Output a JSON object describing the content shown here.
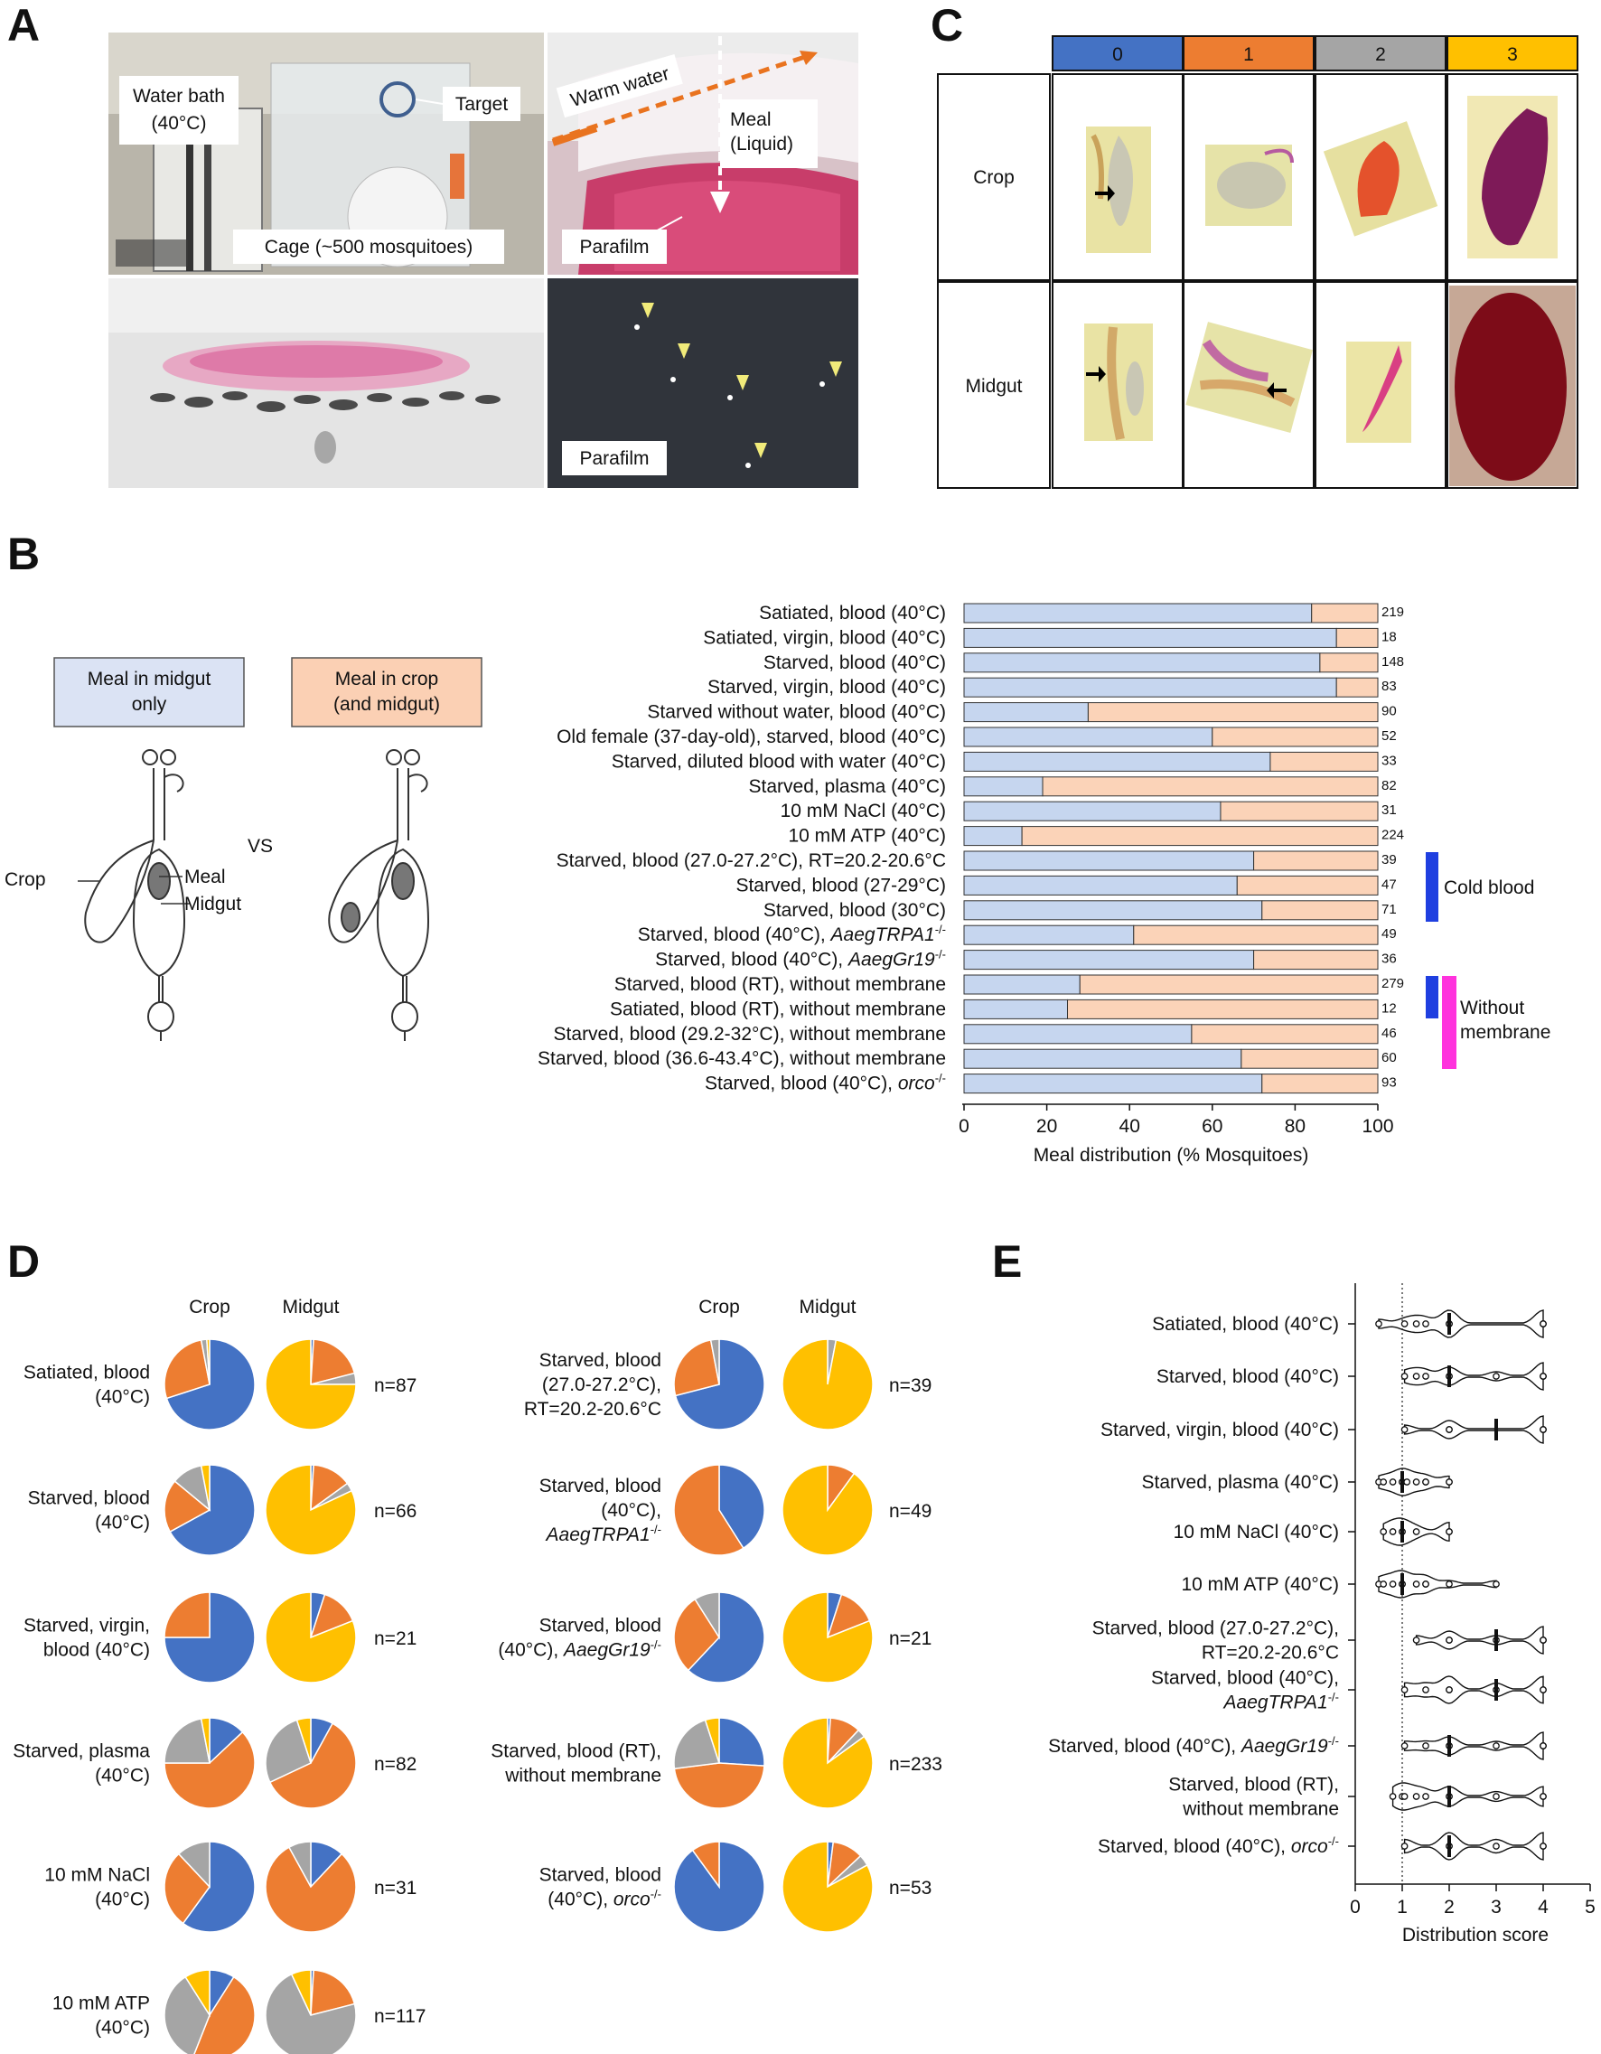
{
  "colors": {
    "midgut_only": "#c6d6ef",
    "crop": "#fbd3b8",
    "score0": "#4472c4",
    "score1": "#ed7d31",
    "score2": "#a5a5a5",
    "score3": "#ffc000",
    "cold": "#1f3fe0",
    "nomem": "#ff33dd"
  },
  "panel_a": {
    "letter": "A",
    "water_bath": [
      "Water bath",
      "(40°C)"
    ],
    "target": "Target",
    "cage": "Cage (~500 mosquitoes)",
    "warm_water": "Warm water",
    "meal": [
      "Meal",
      "(Liquid)"
    ],
    "parafilm1": "Parafilm",
    "parafilm2": "Parafilm"
  },
  "panel_c": {
    "letter": "C",
    "scores": [
      "0",
      "1",
      "2",
      "3"
    ],
    "rows": [
      "Crop",
      "Midgut"
    ]
  },
  "panel_b": {
    "letter": "B",
    "legend_midgut": [
      "Meal in midgut",
      "only"
    ],
    "legend_crop": [
      "Meal in crop",
      "(and midgut)"
    ],
    "diagram": {
      "crop": "Crop",
      "meal": "Meal",
      "midgut": "Midgut",
      "vs": "VS"
    },
    "bracket_cold": "Cold blood",
    "bracket_nomem": [
      "Without",
      "membrane"
    ]
  },
  "chart_data": [
    {
      "type": "bar",
      "stacked": true,
      "orientation": "horizontal",
      "xlabel": "Meal distribution (% Mosquitoes)",
      "xlim": [
        0,
        100
      ],
      "xticks": [
        0,
        20,
        40,
        60,
        80,
        100
      ],
      "series_names": [
        "Meal in midgut only",
        "Meal in crop (and midgut)"
      ],
      "rows": [
        {
          "label": "Satiated, blood (40°C)",
          "midgut": 84,
          "n": "219"
        },
        {
          "label": "Satiated, virgin, blood (40°C)",
          "midgut": 90,
          "n": "18"
        },
        {
          "label": "Starved, blood (40°C)",
          "midgut": 86,
          "n": "148"
        },
        {
          "label": "Starved, virgin, blood (40°C)",
          "midgut": 90,
          "n": "83"
        },
        {
          "label": "Starved without water, blood (40°C)",
          "midgut": 30,
          "n": "90"
        },
        {
          "label": "Old female (37-day-old), starved, blood (40°C)",
          "midgut": 60,
          "n": "52"
        },
        {
          "label": "Starved, diluted blood with water (40°C)",
          "midgut": 74,
          "n": "33"
        },
        {
          "label": "Starved, plasma (40°C)",
          "midgut": 19,
          "n": "82"
        },
        {
          "label": "10 mM NaCl (40°C)",
          "midgut": 62,
          "n": "31"
        },
        {
          "label": "10 mM ATP (40°C)",
          "midgut": 14,
          "n": "224"
        },
        {
          "label": "Starved, blood (27.0-27.2°C), RT=20.2-20.6°C",
          "midgut": 70,
          "n": "39"
        },
        {
          "label": "Starved, blood (27-29°C)",
          "midgut": 66,
          "n": "47"
        },
        {
          "label": "Starved, blood (30°C)",
          "midgut": 72,
          "n": "71"
        },
        {
          "label": "Starved, blood (40°C), AaegTRPA1-/-",
          "italic": "AaegTRPA1",
          "midgut": 41,
          "n": "49"
        },
        {
          "label": "Starved, blood (40°C), AaegGr19-/-",
          "italic": "AaegGr19",
          "midgut": 70,
          "n": "36"
        },
        {
          "label": "Starved, blood (RT), without membrane",
          "midgut": 28,
          "n": "279"
        },
        {
          "label": "Satiated, blood (RT), without membrane",
          "midgut": 25,
          "n": "12"
        },
        {
          "label": "Starved, blood (29.2-32°C), without membrane",
          "midgut": 55,
          "n": "46"
        },
        {
          "label": "Starved, blood (36.6-43.4°C), without membrane",
          "midgut": 67,
          "n": "60"
        },
        {
          "label": "Starved, blood (40°C), orco-/-",
          "italic": "orco",
          "midgut": 72,
          "n": "93"
        }
      ]
    },
    {
      "type": "pie",
      "slice_order": [
        "0",
        "1",
        "2",
        "3"
      ],
      "col_headers": [
        "Crop",
        "Midgut"
      ],
      "groups": [
        {
          "label": [
            "Satiated, blood",
            "(40°C)"
          ],
          "n": "n=87",
          "crop": [
            70,
            27,
            2,
            1
          ],
          "midgut": [
            1,
            20,
            4,
            75
          ]
        },
        {
          "label": [
            "Starved, blood",
            "(40°C)"
          ],
          "n": "n=66",
          "crop": [
            67,
            19,
            11,
            3
          ],
          "midgut": [
            1,
            14,
            3,
            82
          ]
        },
        {
          "label": [
            "Starved, virgin,",
            "blood (40°C)"
          ],
          "n": "n=21",
          "crop": [
            75,
            25,
            0,
            0
          ],
          "midgut": [
            5,
            14,
            0,
            81
          ]
        },
        {
          "label": [
            "Starved, plasma",
            "(40°C)"
          ],
          "n": "n=82",
          "crop": [
            13,
            62,
            22,
            3
          ],
          "midgut": [
            8,
            60,
            27,
            5
          ]
        },
        {
          "label": [
            "10 mM NaCl",
            "(40°C)"
          ],
          "n": "n=31",
          "crop": [
            60,
            28,
            12,
            0
          ],
          "midgut": [
            12,
            80,
            8,
            0
          ]
        },
        {
          "label": [
            "10 mM ATP",
            "(40°C)"
          ],
          "n": "n=117",
          "crop": [
            9,
            47,
            35,
            9
          ],
          "midgut": [
            1,
            20,
            72,
            7
          ]
        },
        {
          "label": [
            "Starved, blood",
            "(27.0-27.2°C),",
            "RT=20.2-20.6°C"
          ],
          "n": "n=39",
          "crop": [
            71,
            26,
            3,
            0
          ],
          "midgut": [
            0,
            0,
            3,
            97
          ]
        },
        {
          "label": [
            "Starved, blood",
            "(40°C),",
            "AaegTRPA1-/-"
          ],
          "n": "n=49",
          "crop": [
            41,
            59,
            0,
            0
          ],
          "midgut": [
            0,
            10,
            0,
            90
          ]
        },
        {
          "label": [
            "Starved, blood",
            "(40°C), AaegGr19-/-"
          ],
          "n": "n=21",
          "crop": [
            62,
            29,
            9,
            0
          ],
          "midgut": [
            5,
            14,
            0,
            81
          ]
        },
        {
          "label": [
            "Starved, blood (RT),",
            "without membrane"
          ],
          "n": "n=233",
          "crop": [
            26,
            47,
            22,
            5
          ],
          "midgut": [
            1,
            11,
            3,
            85
          ]
        },
        {
          "label": [
            "Starved, blood",
            "(40°C), orco-/-"
          ],
          "n": "n=53",
          "crop": [
            90,
            10,
            0,
            0
          ],
          "midgut": [
            2,
            11,
            4,
            83
          ]
        }
      ]
    },
    {
      "type": "violin",
      "xlabel": "Distribution score",
      "xlim": [
        0,
        5
      ],
      "xticks": [
        0,
        1,
        2,
        3,
        4,
        5
      ],
      "reference_line": 1,
      "rows": [
        {
          "label": [
            "Satiated, blood (40°C)"
          ],
          "median": 2,
          "points": [
            0.5,
            1.05,
            1.3,
            1.5,
            2.0,
            2.0,
            2.0,
            4.0,
            4.0,
            4.0
          ]
        },
        {
          "label": [
            "Starved, blood (40°C)"
          ],
          "median": 2,
          "points": [
            1.05,
            1.3,
            1.5,
            2.0,
            2.0,
            3.0,
            4.0,
            4.0,
            4.0
          ]
        },
        {
          "label": [
            "Starved, virgin, blood (40°C)"
          ],
          "median": 3,
          "points": [
            1.05,
            2.0,
            2.0,
            4.0,
            4.0,
            4.0
          ]
        },
        {
          "label": [
            "Starved, plasma (40°C)"
          ],
          "median": 1,
          "points": [
            0.5,
            0.6,
            0.8,
            1.0,
            1.0,
            1.0,
            1.1,
            1.3,
            1.5,
            1.5,
            2.0,
            2.0
          ]
        },
        {
          "label": [
            "10 mM NaCl (40°C)"
          ],
          "median": 1,
          "points": [
            0.6,
            0.8,
            1.0,
            1.0,
            1.3,
            2.0,
            2.0
          ]
        },
        {
          "label": [
            "10 mM ATP (40°C)"
          ],
          "median": 1,
          "points": [
            0.5,
            0.6,
            0.8,
            1.0,
            1.0,
            1.0,
            1.3,
            1.5,
            1.5,
            2.0,
            3.0
          ]
        },
        {
          "label": [
            "Starved, blood (27.0-27.2°C),",
            "RT=20.2-20.6°C"
          ],
          "median": 3,
          "points": [
            1.3,
            2.0,
            2.0,
            3.0,
            4.0,
            4.0,
            4.0
          ]
        },
        {
          "label": [
            "Starved, blood (40°C),",
            "AaegTRPA1-/-"
          ],
          "median": 3,
          "points": [
            1.05,
            1.5,
            2.0,
            2.0,
            3.0,
            4.0,
            4.0
          ]
        },
        {
          "label": [
            "Starved, blood (40°C), AaegGr19-/-"
          ],
          "median": 2,
          "points": [
            1.05,
            1.5,
            2.0,
            2.0,
            3.0,
            4.0,
            4.0,
            4.0
          ]
        },
        {
          "label": [
            "Starved, blood (RT),",
            "without membrane"
          ],
          "median": 2,
          "points": [
            0.8,
            1.0,
            1.05,
            1.3,
            1.5,
            2.0,
            2.0,
            3.0,
            4.0,
            4.0
          ]
        },
        {
          "label": [
            "Starved, blood (40°C), orco-/-"
          ],
          "median": 2,
          "points": [
            1.05,
            2.0,
            2.0,
            3.0,
            4.0,
            4.0
          ]
        }
      ]
    }
  ],
  "panel_d": {
    "letter": "D"
  },
  "panel_e": {
    "letter": "E"
  }
}
